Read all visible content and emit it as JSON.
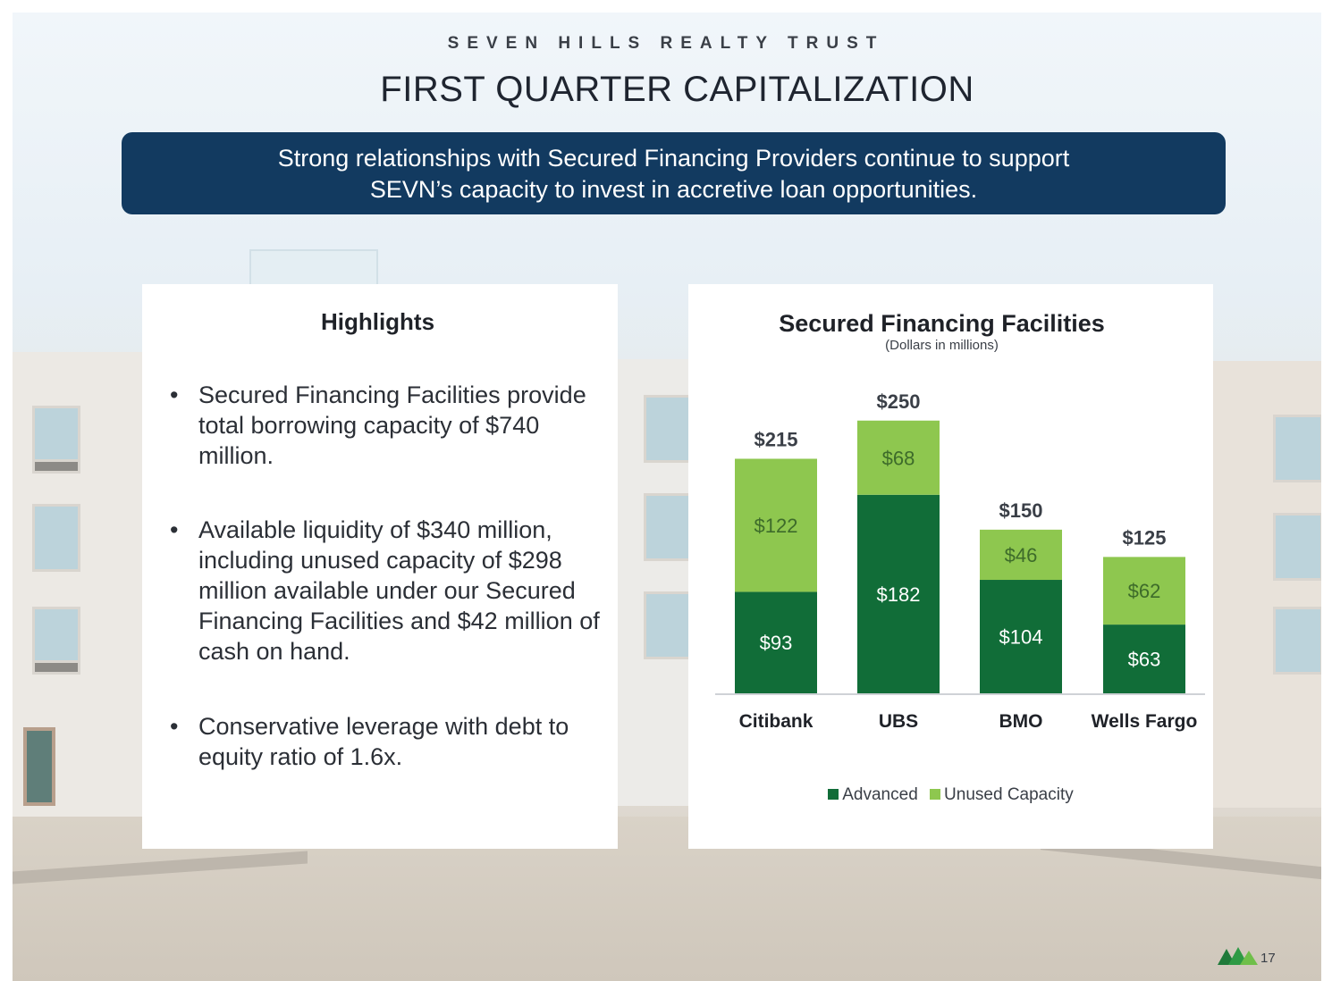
{
  "header": {
    "company": "SEVEN HILLS REALTY TRUST",
    "title": "FIRST QUARTER CAPITALIZATION"
  },
  "banner": {
    "line1": "Strong relationships with Secured Financing Providers continue to support",
    "line2": "SEVN’s capacity to invest in accretive loan opportunities."
  },
  "highlights": {
    "title": "Highlights",
    "bullet_char": "•",
    "items": [
      "Secured Financing Facilities provide total borrowing capacity of $740 million.",
      "Available liquidity of $340 million, including unused capacity of $298 million available under our Secured Financing Facilities and $42 million of cash on hand.",
      "Conservative leverage with debt to equity ratio of 1.6x."
    ]
  },
  "chart_data": {
    "type": "bar",
    "stacked": true,
    "title": "Secured Financing Facilities",
    "subtitle": "(Dollars in millions)",
    "categories": [
      "Citibank",
      "UBS",
      "BMO",
      "Wells Fargo"
    ],
    "series": [
      {
        "name": "Advanced",
        "color": "#116d38",
        "values": [
          93,
          182,
          104,
          63
        ],
        "labels": [
          "$93",
          "$182",
          "$104",
          "$63"
        ]
      },
      {
        "name": "Unused Capacity",
        "color": "#8ec74f",
        "values": [
          122,
          68,
          46,
          62
        ],
        "labels": [
          "$122",
          "$68",
          "$46",
          "$62"
        ]
      }
    ],
    "totals": [
      215,
      250,
      150,
      125
    ],
    "total_labels": [
      "$215",
      "$250",
      "$150",
      "$125"
    ],
    "ylim": [
      0,
      260
    ],
    "legend_position": "bottom",
    "grid": false
  },
  "footer": {
    "page_number": "17"
  }
}
